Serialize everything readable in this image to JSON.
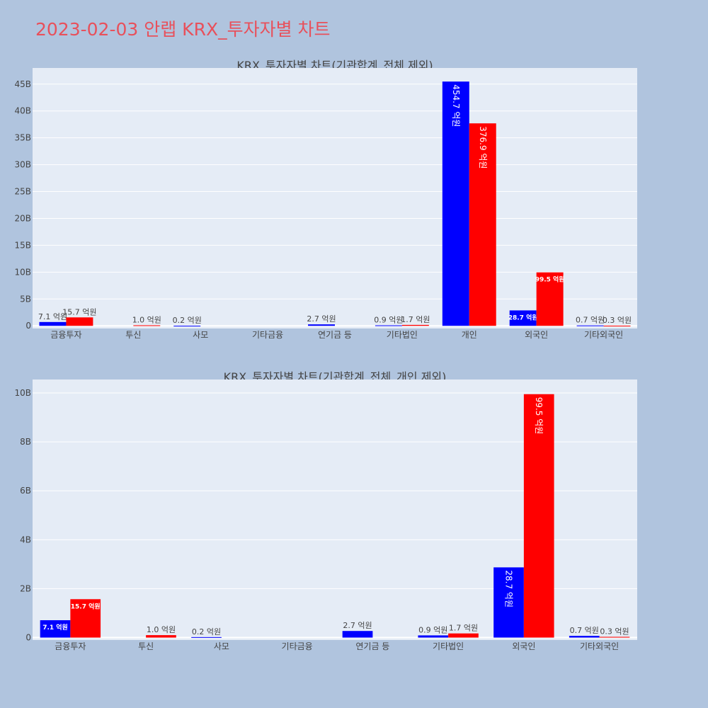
{
  "title": "2023-02-03 안랩 KRX_투자자별 차트",
  "colors": {
    "buy": "#0000ff",
    "sell": "#ff0000",
    "plot_bg": "#e5ecf6",
    "page_bg": "#b0c4de",
    "title": "#e8505b"
  },
  "chart_data": [
    {
      "type": "bar",
      "title": "KRX_투자자별 차트(기관합계_전체 제외)",
      "categories": [
        "금융투자",
        "투신",
        "사모",
        "기타금융",
        "연기금 등",
        "기타법인",
        "개인",
        "외국인",
        "기타외국인"
      ],
      "series": [
        {
          "color": "#0000ff",
          "values": [
            710000000,
            0,
            20000000,
            0,
            270000000,
            90000000,
            45470000000,
            2870000000,
            70000000
          ],
          "labels": [
            "7.1 억원",
            "",
            "0.2 억원",
            "",
            "2.7 억원",
            "0.9 억원",
            "454.7 억원",
            "28.7 억원",
            "0.7 억원"
          ]
        },
        {
          "color": "#ff0000",
          "values": [
            1570000000,
            100000000,
            0,
            0,
            0,
            170000000,
            37690000000,
            9950000000,
            30000000
          ],
          "labels": [
            "15.7 억원",
            "1.0 억원",
            "",
            "",
            "",
            "1.7 억원",
            "376.9 억원",
            "99.5 억원",
            "0.3 억원"
          ]
        }
      ],
      "ylim": [
        -500000000,
        48000000000
      ],
      "yticks": [
        0,
        5000000000,
        10000000000,
        15000000000,
        20000000000,
        25000000000,
        30000000000,
        35000000000,
        40000000000,
        45000000000
      ],
      "ytick_labels": [
        "0",
        "5B",
        "10B",
        "15B",
        "20B",
        "25B",
        "30B",
        "35B",
        "40B",
        "45B"
      ],
      "grid": true
    },
    {
      "type": "bar",
      "title": "KRX_투자자별 차트(기관합계_전체_개인 제외)",
      "categories": [
        "금융투자",
        "투신",
        "사모",
        "기타금융",
        "연기금 등",
        "기타법인",
        "외국인",
        "기타외국인"
      ],
      "series": [
        {
          "color": "#0000ff",
          "values": [
            710000000,
            0,
            20000000,
            0,
            270000000,
            90000000,
            2870000000,
            70000000
          ],
          "labels": [
            "7.1 억원",
            "",
            "0.2 억원",
            "",
            "2.7 억원",
            "0.9 억원",
            "28.7 억원",
            "0.7 억원"
          ]
        },
        {
          "color": "#ff0000",
          "values": [
            1570000000,
            100000000,
            0,
            0,
            0,
            170000000,
            9950000000,
            30000000
          ],
          "labels": [
            "15.7 억원",
            "1.0 억원",
            "",
            "",
            "",
            "1.7 억원",
            "99.5 억원",
            "0.3 억원"
          ]
        }
      ],
      "ylim": [
        -100000000,
        10550000000
      ],
      "yticks": [
        0,
        2000000000,
        4000000000,
        6000000000,
        8000000000,
        10000000000
      ],
      "ytick_labels": [
        "0",
        "2B",
        "4B",
        "6B",
        "8B",
        "10B"
      ],
      "grid": true
    }
  ]
}
